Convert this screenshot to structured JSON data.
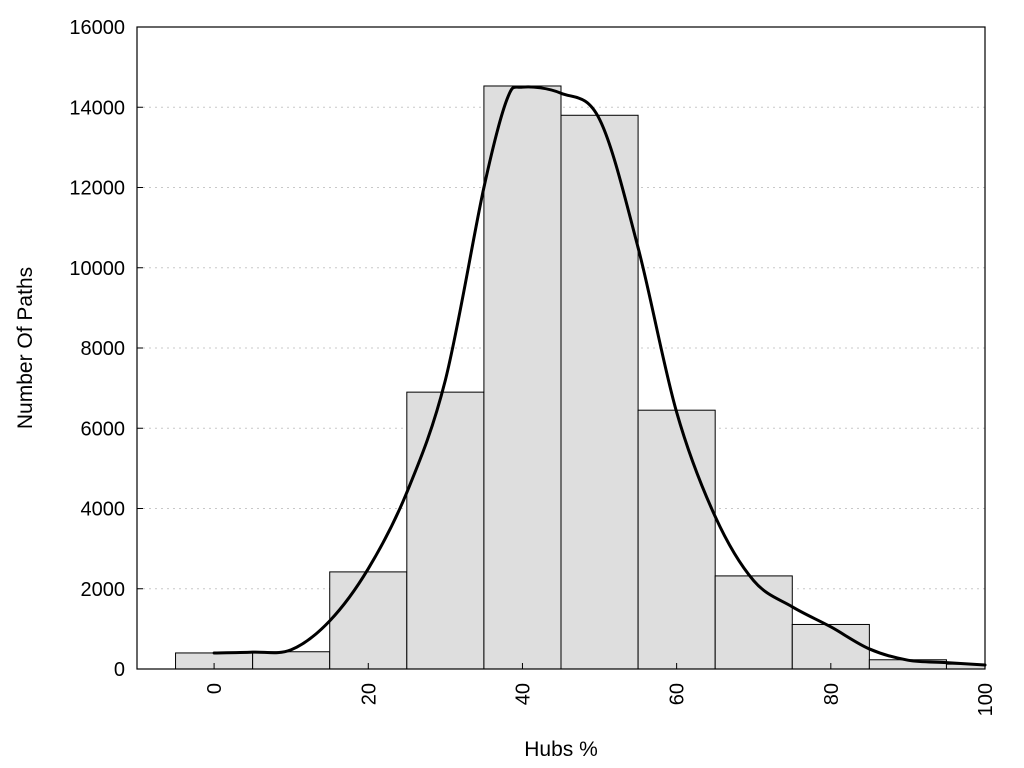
{
  "chart_data": {
    "type": "bar",
    "xlabel": "Hubs %",
    "ylabel": "Number Of Paths",
    "xlim": [
      -10,
      100
    ],
    "ylim": [
      0,
      16000
    ],
    "x_ticks": [
      0,
      20,
      40,
      60,
      80,
      100
    ],
    "y_ticks": [
      0,
      2000,
      4000,
      6000,
      8000,
      10000,
      12000,
      14000,
      16000
    ],
    "grid": "horizontal dotted",
    "bin_width": 10,
    "bins": [
      {
        "center": 0,
        "value": 400
      },
      {
        "center": 10,
        "value": 430
      },
      {
        "center": 20,
        "value": 2420
      },
      {
        "center": 30,
        "value": 6900
      },
      {
        "center": 40,
        "value": 14530
      },
      {
        "center": 50,
        "value": 13800
      },
      {
        "center": 60,
        "value": 6450
      },
      {
        "center": 70,
        "value": 2320
      },
      {
        "center": 80,
        "value": 1110
      },
      {
        "center": 90,
        "value": 230
      },
      {
        "center": 100,
        "value": 120
      }
    ],
    "curve": {
      "type": "line",
      "x": [
        0,
        5,
        10,
        15,
        20,
        25,
        30,
        35,
        38,
        40,
        45,
        50,
        55,
        60,
        65,
        70,
        75,
        80,
        85,
        90,
        95,
        100
      ],
      "y": [
        400,
        420,
        480,
        1200,
        2500,
        4400,
        7200,
        12000,
        14200,
        14500,
        14350,
        13700,
        10500,
        6400,
        3800,
        2200,
        1550,
        1050,
        500,
        220,
        160,
        100
      ]
    },
    "colors": {
      "bar_fill": "#dedede",
      "bar_stroke": "#000000",
      "curve": "#000000",
      "grid": "#c8c8c8"
    }
  }
}
